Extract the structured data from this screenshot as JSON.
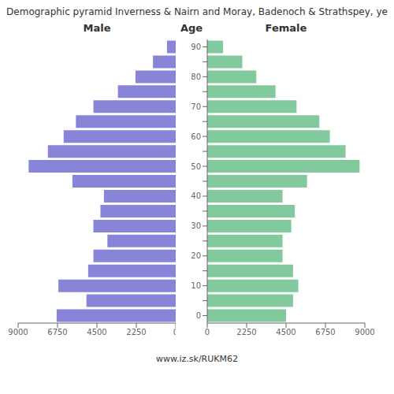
{
  "chart_data": {
    "type": "bar",
    "title": "Demographic pyramid Inverness & Nairn and Moray, Badenoch & Strathspey, ye",
    "orientation": "horizontal",
    "ylabel": "Age",
    "categories": [
      0,
      null,
      10,
      null,
      20,
      null,
      30,
      null,
      40,
      null,
      50,
      null,
      60,
      null,
      70,
      null,
      80,
      null,
      90
    ],
    "series": [
      {
        "name": "Male",
        "color": "#8884d8",
        "values": [
          6800,
          5100,
          6700,
          5000,
          4700,
          3900,
          4700,
          4300,
          4100,
          5900,
          8400,
          7300,
          6400,
          5700,
          4700,
          3300,
          2300,
          1300,
          500
        ]
      },
      {
        "name": "Female",
        "color": "#82ca9d",
        "values": [
          4500,
          4900,
          5200,
          4900,
          4300,
          4300,
          4800,
          5000,
          4300,
          5700,
          8700,
          7900,
          7000,
          6400,
          5100,
          3900,
          2800,
          2000,
          900
        ]
      }
    ],
    "xlim": [
      0,
      9000
    ],
    "xticks": [
      0,
      2250,
      4500,
      6750,
      9000
    ],
    "grid": false,
    "annotations": [
      "www.iz.sk/RUKM62"
    ]
  }
}
